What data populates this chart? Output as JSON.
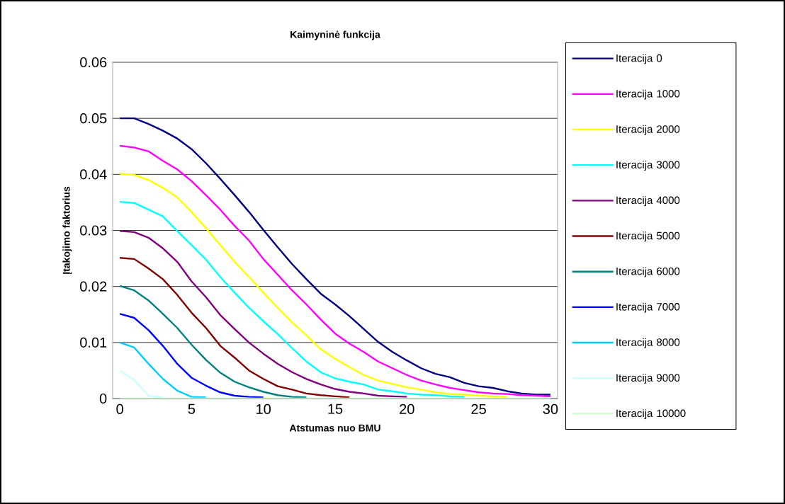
{
  "chart_data": {
    "type": "line",
    "title": "Kaimyninė funkcija",
    "xlabel": "Atstumas nuo BMU",
    "ylabel": "Įtakojimo faktorius",
    "x": [
      0,
      1,
      2,
      3,
      4,
      5,
      6,
      7,
      8,
      9,
      10,
      11,
      12,
      13,
      14,
      15,
      16,
      17,
      18,
      19,
      20,
      21,
      22,
      23,
      24,
      25,
      26,
      27,
      28,
      29,
      30
    ],
    "xlim": [
      -0.5,
      30.5
    ],
    "xticks": [
      0,
      5,
      10,
      15,
      20,
      25,
      30
    ],
    "ylim": [
      0,
      0.06
    ],
    "yticks": [
      0,
      0.01,
      0.02,
      0.03,
      0.04,
      0.05,
      0.06
    ],
    "grid": "y",
    "legend": "right",
    "marker": "none",
    "line_style": "solid",
    "series": [
      {
        "name": "Iteracija 0",
        "color": "#000080",
        "values": [
          0.05,
          0.05,
          0.049,
          0.0478,
          0.0464,
          0.0445,
          0.042,
          0.0392,
          0.0363,
          0.0333,
          0.0301,
          0.027,
          0.024,
          0.0213,
          0.0187,
          0.0168,
          0.0147,
          0.0124,
          0.0101,
          0.0083,
          0.0068,
          0.0054,
          0.0044,
          0.0038,
          0.0028,
          0.0022,
          0.0019,
          0.0013,
          0.0009,
          0.0007,
          0.0007
        ]
      },
      {
        "name": "Iteracija 1000",
        "color": "#ff00ff",
        "values": [
          0.0451,
          0.0448,
          0.0441,
          0.0424,
          0.0409,
          0.0388,
          0.0363,
          0.0337,
          0.0308,
          0.0282,
          0.0249,
          0.0221,
          0.0193,
          0.0168,
          0.0141,
          0.0116,
          0.0098,
          0.0083,
          0.0066,
          0.0054,
          0.0042,
          0.0032,
          0.0025,
          0.0019,
          0.0015,
          0.0011,
          0.0009,
          0.0008,
          0.0006,
          0.0005,
          0.0004
        ]
      },
      {
        "name": "Iteracija 2000",
        "color": "#ffff00",
        "values": [
          0.0401,
          0.0399,
          0.039,
          0.0376,
          0.0359,
          0.0333,
          0.0304,
          0.0274,
          0.0244,
          0.0217,
          0.0189,
          0.0162,
          0.0136,
          0.0113,
          0.0088,
          0.0071,
          0.0056,
          0.0042,
          0.0032,
          0.0026,
          0.002,
          0.0016,
          0.0011,
          0.0008,
          0.0007,
          0.0005,
          0.0004,
          0.0003,
          null,
          null,
          null
        ]
      },
      {
        "name": "Iteracija 3000",
        "color": "#00ffff",
        "values": [
          0.0351,
          0.0349,
          0.0337,
          0.0325,
          0.0299,
          0.0274,
          0.0248,
          0.0217,
          0.0189,
          0.0162,
          0.0138,
          0.0115,
          0.009,
          0.0066,
          0.0047,
          0.0036,
          0.003,
          0.0025,
          0.0016,
          0.0013,
          0.0009,
          0.0007,
          0.0006,
          0.0004,
          0.0003,
          null,
          null,
          null,
          null,
          null,
          null
        ]
      },
      {
        "name": "Iteracija 4000",
        "color": "#800080",
        "values": [
          0.0299,
          0.0297,
          0.0287,
          0.0268,
          0.0244,
          0.0209,
          0.0181,
          0.0149,
          0.0124,
          0.01,
          0.008,
          0.0062,
          0.0047,
          0.0035,
          0.0025,
          0.0017,
          0.0012,
          0.0009,
          0.0005,
          0.0004,
          0.0003,
          null,
          null,
          null,
          null,
          null,
          null,
          null,
          null,
          null,
          null
        ]
      },
      {
        "name": "Iteracija 5000",
        "color": "#800000",
        "values": [
          0.0251,
          0.0249,
          0.0232,
          0.0213,
          0.0185,
          0.0153,
          0.0126,
          0.0094,
          0.0073,
          0.005,
          0.0035,
          0.0022,
          0.0016,
          0.0009,
          0.0006,
          0.0004,
          0.0002,
          null,
          null,
          null,
          null,
          null,
          null,
          null,
          null,
          null,
          null,
          null,
          null,
          null,
          null
        ]
      },
      {
        "name": "Iteracija 6000",
        "color": "#008080",
        "values": [
          0.0201,
          0.0193,
          0.0175,
          0.0151,
          0.0126,
          0.0096,
          0.0069,
          0.0046,
          0.003,
          0.002,
          0.0012,
          0.0006,
          0.0003,
          0.0002,
          null,
          null,
          null,
          null,
          null,
          null,
          null,
          null,
          null,
          null,
          null,
          null,
          null,
          null,
          null,
          null,
          null
        ]
      },
      {
        "name": "Iteracija 7000",
        "color": "#0000ff",
        "values": [
          0.0151,
          0.0144,
          0.0122,
          0.0094,
          0.0062,
          0.0037,
          0.0023,
          0.0011,
          0.0005,
          0.0003,
          0.0002,
          null,
          null,
          null,
          null,
          null,
          null,
          null,
          null,
          null,
          null,
          null,
          null,
          null,
          null,
          null,
          null,
          null,
          null,
          null,
          null
        ]
      },
      {
        "name": "Iteracija 8000",
        "color": "#00ccff",
        "values": [
          0.01,
          0.0091,
          0.0062,
          0.0035,
          0.0014,
          0.0003,
          0.0002,
          null,
          null,
          null,
          null,
          null,
          null,
          null,
          null,
          null,
          null,
          null,
          null,
          null,
          null,
          null,
          null,
          null,
          null,
          null,
          null,
          null,
          null,
          null,
          null
        ]
      },
      {
        "name": "Iteracija 9000",
        "color": "#ccffff",
        "values": [
          0.005,
          0.0033,
          0.0005,
          0.0002,
          null,
          null,
          null,
          null,
          null,
          null,
          null,
          null,
          null,
          null,
          null,
          null,
          null,
          null,
          null,
          null,
          null,
          null,
          null,
          null,
          null,
          null,
          null,
          null,
          null,
          null,
          null
        ]
      },
      {
        "name": "Iteracija 10000",
        "color": "#ccffcc",
        "values": [
          0,
          0,
          0,
          0,
          0,
          0,
          0,
          0,
          0,
          0,
          0,
          0,
          0,
          0,
          0,
          0,
          0,
          0,
          0,
          0,
          0,
          0,
          0,
          0,
          0,
          0,
          0,
          0,
          0,
          0,
          0
        ]
      }
    ]
  }
}
